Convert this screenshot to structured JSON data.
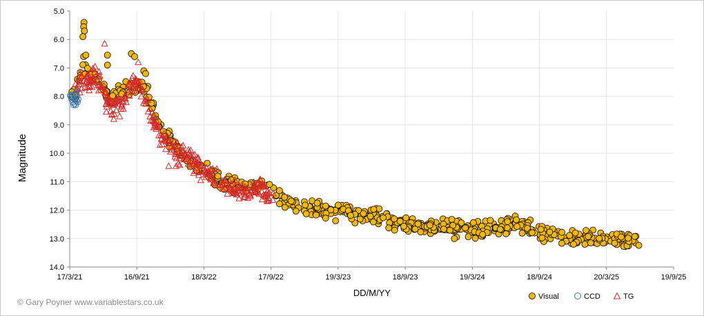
{
  "chart_data": {
    "type": "scatter",
    "title": "",
    "xlabel": "DD/M/YY",
    "ylabel": "Magnitude",
    "y_inverted": true,
    "ylim": [
      5.0,
      14.0
    ],
    "y_ticks": [
      "5.0",
      "6.0",
      "7.0",
      "8.0",
      "9.0",
      "10.0",
      "11.0",
      "12.0",
      "13.0",
      "14.0"
    ],
    "xlim": [
      "2021-03-17",
      "2025-09-19"
    ],
    "x_ticks": [
      "17/3/21",
      "16/9/21",
      "18/3/22",
      "17/9/22",
      "19/3/23",
      "18/9/23",
      "19/3/24",
      "18/9/24",
      "20/3/25",
      "19/9/25"
    ],
    "x_tick_dates": [
      "2021-03-17",
      "2021-09-16",
      "2022-03-18",
      "2022-09-17",
      "2023-03-19",
      "2023-09-18",
      "2024-03-19",
      "2024-09-18",
      "2025-03-20",
      "2025-09-19"
    ],
    "grid": true,
    "legend_position": "bottom-right",
    "series": [
      {
        "name": "Visual",
        "color": "#f5b800",
        "edge": "#000000",
        "marker": "circle",
        "trend": [
          [
            "2021-03-20",
            8.0
          ],
          [
            "2021-04-01",
            7.9
          ],
          [
            "2021-04-15",
            7.3
          ],
          [
            "2021-05-01",
            7.0
          ],
          [
            "2021-05-20",
            7.3
          ],
          [
            "2021-06-10",
            7.5
          ],
          [
            "2021-07-01",
            8.1
          ],
          [
            "2021-07-20",
            7.9
          ],
          [
            "2021-08-15",
            7.8
          ],
          [
            "2021-09-10",
            7.6
          ],
          [
            "2021-10-01",
            7.6
          ],
          [
            "2021-10-20",
            8.0
          ],
          [
            "2021-11-10",
            8.8
          ],
          [
            "2021-12-01",
            9.3
          ],
          [
            "2022-01-01",
            9.8
          ],
          [
            "2022-02-01",
            10.1
          ],
          [
            "2022-03-01",
            10.5
          ],
          [
            "2022-04-01",
            10.7
          ],
          [
            "2022-05-01",
            10.9
          ],
          [
            "2022-06-01",
            11.1
          ],
          [
            "2022-07-01",
            11.2
          ],
          [
            "2022-08-01",
            11.1
          ],
          [
            "2022-09-01",
            11.2
          ],
          [
            "2022-10-01",
            11.4
          ],
          [
            "2022-11-01",
            11.7
          ],
          [
            "2022-12-01",
            11.9
          ],
          [
            "2023-01-01",
            11.9
          ],
          [
            "2023-02-01",
            12.0
          ],
          [
            "2023-04-01",
            12.05
          ],
          [
            "2023-06-01",
            12.2
          ],
          [
            "2023-08-01",
            12.35
          ],
          [
            "2023-10-01",
            12.5
          ],
          [
            "2023-12-01",
            12.55
          ],
          [
            "2024-02-01",
            12.6
          ],
          [
            "2024-04-01",
            12.7
          ],
          [
            "2024-06-01",
            12.6
          ],
          [
            "2024-08-01",
            12.5
          ],
          [
            "2024-10-01",
            12.8
          ],
          [
            "2024-12-01",
            13.0
          ],
          [
            "2025-02-01",
            13.0
          ],
          [
            "2025-04-01",
            13.0
          ],
          [
            "2025-06-20",
            13.05
          ]
        ],
        "outliers": [
          [
            "2021-04-25",
            5.4
          ],
          [
            "2021-04-24",
            5.55
          ],
          [
            "2021-04-26",
            5.7
          ],
          [
            "2021-04-22",
            5.9
          ],
          [
            "2021-04-24",
            6.6
          ],
          [
            "2021-04-30",
            6.55
          ],
          [
            "2021-06-28",
            6.55
          ],
          [
            "2021-06-28",
            6.9
          ],
          [
            "2021-09-01",
            6.5
          ],
          [
            "2021-09-10",
            6.6
          ],
          [
            "2021-10-05",
            7.1
          ],
          [
            "2021-10-10",
            7.2
          ],
          [
            "2024-02-05",
            12.95
          ],
          [
            "2024-01-30",
            13.0
          ],
          [
            "2024-12-20",
            13.2
          ],
          [
            "2025-01-20",
            13.2
          ],
          [
            "2025-02-05",
            13.15
          ]
        ],
        "spread": 0.22,
        "count": 650,
        "x_end": "2025-06-25"
      },
      {
        "name": "CCD",
        "color": "#2e75b6",
        "marker": "open-circle",
        "points": [
          [
            "2021-03-20",
            8.0
          ],
          [
            "2021-03-22",
            8.1
          ],
          [
            "2021-03-24",
            7.95
          ],
          [
            "2021-03-26",
            8.2
          ],
          [
            "2021-03-28",
            8.3
          ],
          [
            "2021-03-30",
            8.25
          ],
          [
            "2021-04-01",
            8.1
          ],
          [
            "2021-04-03",
            7.9
          ],
          [
            "2021-04-05",
            8.15
          ],
          [
            "2021-04-07",
            8.2
          ],
          [
            "2021-03-19",
            7.95
          ],
          [
            "2021-04-02",
            8.3
          ],
          [
            "2021-04-06",
            8.0
          ],
          [
            "2021-04-09",
            8.1
          ],
          [
            "2021-03-25",
            8.0
          ],
          [
            "2021-04-04",
            7.85
          ]
        ]
      },
      {
        "name": "TG",
        "color": "#d42a2a",
        "marker": "open-triangle",
        "trend": [
          [
            "2021-04-01",
            7.9
          ],
          [
            "2021-04-20",
            7.4
          ],
          [
            "2021-05-05",
            7.5
          ],
          [
            "2021-05-25",
            7.3
          ],
          [
            "2021-06-15",
            7.7
          ],
          [
            "2021-07-05",
            8.4
          ],
          [
            "2021-08-01",
            8.3
          ],
          [
            "2021-08-20",
            7.8
          ],
          [
            "2021-09-15",
            7.5
          ],
          [
            "2021-10-10",
            8.0
          ],
          [
            "2021-11-15",
            9.3
          ],
          [
            "2021-12-20",
            9.8
          ],
          [
            "2022-01-20",
            10.0
          ],
          [
            "2022-02-20",
            10.3
          ],
          [
            "2022-03-20",
            10.7
          ],
          [
            "2022-04-20",
            10.9
          ],
          [
            "2022-05-20",
            11.1
          ],
          [
            "2022-06-20",
            11.3
          ],
          [
            "2022-07-20",
            11.3
          ],
          [
            "2022-08-20",
            11.2
          ],
          [
            "2022-09-20",
            11.6
          ]
        ],
        "outliers": [
          [
            "2021-06-20",
            6.15
          ],
          [
            "2021-09-20",
            6.8
          ],
          [
            "2021-07-15",
            8.8
          ],
          [
            "2021-06-25",
            8.55
          ],
          [
            "2022-01-01",
            10.45
          ],
          [
            "2021-12-12",
            10.45
          ]
        ],
        "spread": 0.3,
        "count": 360,
        "x_end": "2022-09-25"
      }
    ]
  },
  "copyright": "© Gary Poyner www.variablestars.co.uk"
}
